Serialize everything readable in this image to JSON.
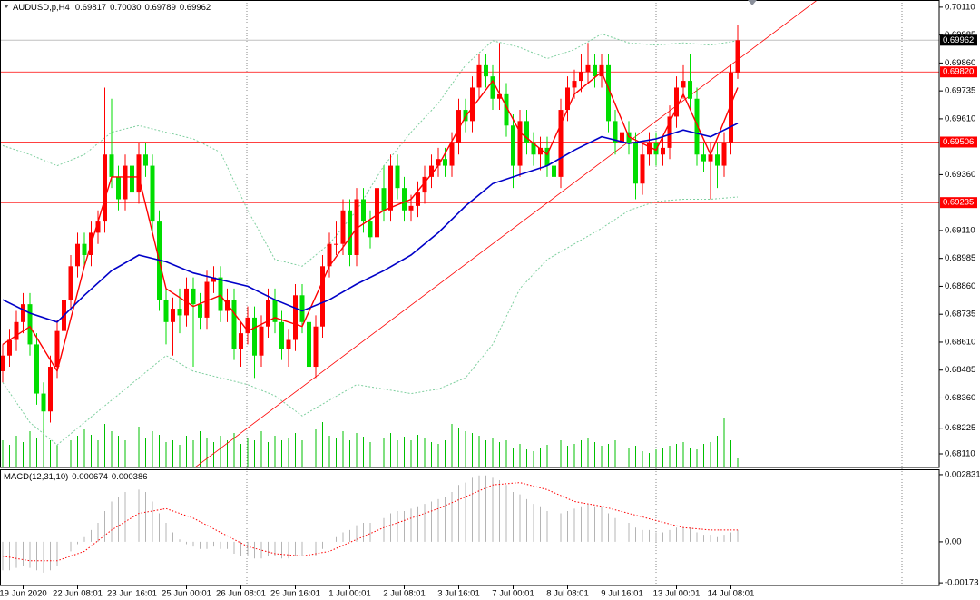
{
  "header": {
    "symbol": "AUDUSD,p,H4",
    "ohlc": [
      "0.69817",
      "0.70030",
      "0.69789",
      "0.69962"
    ]
  },
  "chart_data": {
    "type": "candlestick",
    "xlim": [
      -0.4,
      137.6
    ],
    "xticks": [
      {
        "value": 3,
        "label": "19 Jun 2020"
      },
      {
        "value": 11,
        "label": "22 Jun 08:01"
      },
      {
        "value": 19,
        "label": "23 Jun 16:01"
      },
      {
        "value": 27,
        "label": "25 Jun 00:01"
      },
      {
        "value": 35,
        "label": "26 Jun 08:01"
      },
      {
        "value": 43,
        "label": "29 Jun 16:01"
      },
      {
        "value": 51,
        "label": "1 Jul 00:01"
      },
      {
        "value": 59,
        "label": "2 Jul 08:01"
      },
      {
        "value": 67,
        "label": "3 Jul 16:01"
      },
      {
        "value": 75,
        "label": "7 Jul 00:01"
      },
      {
        "value": 83,
        "label": "8 Jul 08:01"
      },
      {
        "value": 91,
        "label": "9 Jul 16:01"
      },
      {
        "value": 99,
        "label": "13 Jul 00:01"
      },
      {
        "value": 107,
        "label": "14 Jul 08:01"
      }
    ],
    "ylim": [
      0.68049,
      0.70142
    ],
    "yticks": [
      {
        "value": 0.7011,
        "label": "0.70110"
      },
      0.69985,
      {
        "value": 0.6986,
        "label": "0.69860"
      },
      0.69735,
      {
        "value": 0.6961,
        "label": "0.69610"
      },
      {
        "value": 0.6936,
        "label": "0.69360"
      },
      {
        "value": 0.6911,
        "label": "0.69110"
      },
      0.68985,
      {
        "value": 0.6886,
        "label": "0.68860"
      },
      0.68735,
      {
        "value": 0.6861,
        "label": "0.68610"
      },
      0.68485,
      {
        "value": 0.6836,
        "label": "0.68360"
      },
      0.68225,
      {
        "value": 0.6811,
        "label": "0.68110"
      }
    ],
    "up_color": "#ff0000",
    "down_color": "#00dd00",
    "open": [
      0.6848,
      0.6855,
      0.6862,
      0.687,
      0.6878,
      0.686,
      0.6838,
      0.683,
      0.685,
      0.6866,
      0.688,
      0.6895,
      0.6905,
      0.69,
      0.691,
      0.6915,
      0.6945,
      0.6935,
      0.6925,
      0.694,
      0.6928,
      0.6945,
      0.694,
      0.6915,
      0.688,
      0.687,
      0.6876,
      0.6873,
      0.6885,
      0.6878,
      0.6872,
      0.6888,
      0.689,
      0.6875,
      0.688,
      0.6858,
      0.6865,
      0.6872,
      0.6855,
      0.6868,
      0.688,
      0.687,
      0.6858,
      0.6862,
      0.6882,
      0.687,
      0.685,
      0.6868,
      0.6895,
      0.6905,
      0.6905,
      0.692,
      0.69,
      0.6925,
      0.6915,
      0.6908,
      0.693,
      0.692,
      0.694,
      0.693,
      0.692,
      0.6922,
      0.6928,
      0.6935,
      0.694,
      0.6943,
      0.694,
      0.695,
      0.6965,
      0.696,
      0.6975,
      0.6985,
      0.698,
      0.697,
      0.6972,
      0.6958,
      0.694,
      0.696,
      0.695,
      0.6945,
      0.6948,
      0.694,
      0.6935,
      0.6965,
      0.6975,
      0.6978,
      0.6982,
      0.6985,
      0.698,
      0.6985,
      0.696,
      0.695,
      0.6955,
      0.695,
      0.6932,
      0.6945,
      0.695,
      0.6945,
      0.6948,
      0.6962,
      0.6975,
      0.6978,
      0.697,
      0.6945,
      0.6942,
      0.6945,
      0.694,
      0.695,
      0.69817
    ],
    "high": [
      0.686,
      0.6867,
      0.6875,
      0.6883,
      0.6883,
      0.6865,
      0.6843,
      0.6855,
      0.6871,
      0.6885,
      0.69,
      0.691,
      0.691,
      0.6915,
      0.692,
      0.6975,
      0.697,
      0.694,
      0.6945,
      0.6945,
      0.695,
      0.695,
      0.6945,
      0.692,
      0.6885,
      0.6881,
      0.6885,
      0.689,
      0.689,
      0.6883,
      0.6893,
      0.6895,
      0.6895,
      0.6885,
      0.6885,
      0.687,
      0.6877,
      0.6877,
      0.6873,
      0.6885,
      0.6885,
      0.6875,
      0.6867,
      0.6887,
      0.6887,
      0.6875,
      0.6873,
      0.69,
      0.691,
      0.6915,
      0.6925,
      0.6925,
      0.693,
      0.693,
      0.692,
      0.6935,
      0.694,
      0.6945,
      0.6945,
      0.6935,
      0.6927,
      0.6933,
      0.694,
      0.6945,
      0.6948,
      0.6948,
      0.6955,
      0.697,
      0.697,
      0.698,
      0.699,
      0.699,
      0.6985,
      0.6995,
      0.6977,
      0.6963,
      0.6965,
      0.6965,
      0.6955,
      0.6953,
      0.6953,
      0.6945,
      0.697,
      0.698,
      0.6983,
      0.699,
      0.6995,
      0.699,
      0.699,
      0.699,
      0.6965,
      0.696,
      0.696,
      0.6955,
      0.695,
      0.6955,
      0.6955,
      0.6953,
      0.6967,
      0.698,
      0.6985,
      0.699,
      0.6975,
      0.695,
      0.695,
      0.695,
      0.6955,
      0.6985,
      0.7003
    ],
    "low": [
      0.6843,
      0.685,
      0.6857,
      0.6865,
      0.6855,
      0.6833,
      0.6822,
      0.6825,
      0.6845,
      0.6861,
      0.6875,
      0.689,
      0.6895,
      0.6895,
      0.6905,
      0.691,
      0.693,
      0.692,
      0.692,
      0.6923,
      0.6923,
      0.6935,
      0.691,
      0.6875,
      0.686,
      0.6855,
      0.6865,
      0.6868,
      0.685,
      0.6867,
      0.6867,
      0.6883,
      0.687,
      0.687,
      0.6853,
      0.685,
      0.686,
      0.6845,
      0.685,
      0.6863,
      0.6865,
      0.6853,
      0.685,
      0.6857,
      0.6865,
      0.6845,
      0.6845,
      0.6863,
      0.689,
      0.69,
      0.69,
      0.6895,
      0.6895,
      0.691,
      0.6903,
      0.6903,
      0.6915,
      0.6915,
      0.6925,
      0.6915,
      0.6915,
      0.6917,
      0.6923,
      0.693,
      0.6935,
      0.6935,
      0.6935,
      0.6945,
      0.6955,
      0.6955,
      0.697,
      0.6975,
      0.6965,
      0.6965,
      0.6953,
      0.693,
      0.6935,
      0.6945,
      0.694,
      0.6938,
      0.6935,
      0.693,
      0.693,
      0.696,
      0.697,
      0.6973,
      0.6977,
      0.6975,
      0.6975,
      0.6955,
      0.6945,
      0.6945,
      0.6945,
      0.6925,
      0.6927,
      0.694,
      0.694,
      0.694,
      0.6943,
      0.6957,
      0.697,
      0.6965,
      0.694,
      0.6937,
      0.6925,
      0.693,
      0.6935,
      0.6945,
      0.69789
    ],
    "close": [
      0.6855,
      0.6862,
      0.687,
      0.6878,
      0.686,
      0.6838,
      0.683,
      0.685,
      0.6866,
      0.688,
      0.6895,
      0.6905,
      0.69,
      0.691,
      0.6915,
      0.6945,
      0.6935,
      0.6925,
      0.694,
      0.6928,
      0.6945,
      0.694,
      0.6915,
      0.688,
      0.687,
      0.6876,
      0.6873,
      0.6885,
      0.6878,
      0.6872,
      0.6888,
      0.689,
      0.6875,
      0.688,
      0.6858,
      0.6865,
      0.6872,
      0.6855,
      0.6868,
      0.688,
      0.687,
      0.6858,
      0.6862,
      0.6882,
      0.687,
      0.685,
      0.6868,
      0.6895,
      0.6905,
      0.6905,
      0.692,
      0.69,
      0.6925,
      0.6915,
      0.6908,
      0.693,
      0.692,
      0.694,
      0.693,
      0.692,
      0.6922,
      0.6928,
      0.6935,
      0.694,
      0.6943,
      0.694,
      0.695,
      0.6965,
      0.696,
      0.6975,
      0.6985,
      0.698,
      0.697,
      0.6972,
      0.6958,
      0.694,
      0.696,
      0.695,
      0.6945,
      0.6948,
      0.694,
      0.6935,
      0.6965,
      0.6975,
      0.6978,
      0.6982,
      0.6985,
      0.698,
      0.6985,
      0.696,
      0.695,
      0.6955,
      0.695,
      0.6932,
      0.6945,
      0.695,
      0.6945,
      0.6948,
      0.6962,
      0.6975,
      0.6978,
      0.697,
      0.6945,
      0.6942,
      0.6945,
      0.694,
      0.695,
      0.69817,
      0.69962
    ],
    "current_price": 0.69962,
    "levels": [
      {
        "value": 0.6982,
        "label": "0.69820",
        "color": "#ff0000"
      },
      {
        "value": 0.69506,
        "label": "0.69506",
        "color": "#ff0000"
      },
      {
        "value": 0.69235,
        "label": "0.69235",
        "color": "#ff0000"
      }
    ],
    "trendline": {
      "x": [
        28.3,
        119.6
      ],
      "y": [
        0.6805,
        0.7014
      ],
      "color": "#ff0000"
    },
    "indicator_x": [
      0,
      4,
      8,
      12,
      16,
      20,
      24,
      28,
      32,
      36,
      40,
      44,
      48,
      52,
      56,
      60,
      64,
      68,
      72,
      76,
      80,
      84,
      88,
      92,
      96,
      100,
      104,
      108
    ],
    "ma_fast": {
      "color": "#ff0000",
      "values": [
        0.686,
        0.6868,
        0.6848,
        0.6895,
        0.6935,
        0.6935,
        0.6885,
        0.6877,
        0.6882,
        0.6866,
        0.6872,
        0.6868,
        0.6895,
        0.6912,
        0.692,
        0.6925,
        0.694,
        0.6962,
        0.6978,
        0.6955,
        0.6945,
        0.6972,
        0.6982,
        0.6953,
        0.6947,
        0.6972,
        0.6945,
        0.6975
      ]
    },
    "ma_slow": {
      "color": "#0000c8",
      "values": [
        0.688,
        0.6874,
        0.687,
        0.6882,
        0.6893,
        0.69,
        0.6897,
        0.6892,
        0.6889,
        0.6886,
        0.688,
        0.6875,
        0.688,
        0.6887,
        0.6893,
        0.69,
        0.691,
        0.6922,
        0.6932,
        0.6936,
        0.694,
        0.6947,
        0.6953,
        0.695,
        0.6952,
        0.6956,
        0.6953,
        0.6959
      ]
    },
    "band_upper": {
      "color": "#7fcf9f",
      "values": [
        0.6949,
        0.6945,
        0.694,
        0.6945,
        0.6955,
        0.6958,
        0.6955,
        0.6952,
        0.6946,
        0.692,
        0.6898,
        0.6895,
        0.6905,
        0.692,
        0.694,
        0.6955,
        0.6968,
        0.6985,
        0.6996,
        0.6993,
        0.6988,
        0.6992,
        0.6999,
        0.6995,
        0.6994,
        0.6995,
        0.6994,
        0.6996
      ]
    },
    "band_lower": {
      "color": "#7fcf9f",
      "values": [
        0.6843,
        0.6825,
        0.6815,
        0.6825,
        0.6835,
        0.6845,
        0.6855,
        0.6848,
        0.6845,
        0.6842,
        0.6837,
        0.6828,
        0.6835,
        0.6842,
        0.684,
        0.6838,
        0.684,
        0.6845,
        0.686,
        0.6885,
        0.6898,
        0.6905,
        0.6912,
        0.692,
        0.6924,
        0.6925,
        0.6925,
        0.6926
      ]
    },
    "volume": {
      "color": "#00c000",
      "values": [
        30,
        25,
        35,
        28,
        40,
        33,
        45,
        30,
        25,
        38,
        30,
        35,
        42,
        36,
        30,
        48,
        40,
        35,
        30,
        38,
        45,
        32,
        40,
        36,
        28,
        30,
        25,
        35,
        30,
        40,
        32,
        28,
        35,
        30,
        38,
        26,
        32,
        30,
        40,
        28,
        35,
        30,
        33,
        38,
        30,
        36,
        42,
        50,
        35,
        32,
        40,
        30,
        38,
        34,
        28,
        36,
        32,
        38,
        30,
        34,
        30,
        36,
        32,
        28,
        26,
        30,
        48,
        44,
        40,
        38,
        35,
        30,
        32,
        28,
        30,
        22,
        26,
        20,
        18,
        22,
        25,
        28,
        30,
        24,
        26,
        30,
        32,
        28,
        24,
        26,
        30,
        20,
        22,
        24,
        18,
        16,
        20,
        22,
        24,
        26,
        28,
        22,
        20,
        26,
        28,
        35,
        55,
        30,
        10
      ]
    },
    "macd": {
      "label": "MACD(12,31,10)",
      "values_text": [
        "0.000674",
        "0.000386"
      ],
      "ylim": [
        -0.00184,
        0.00302
      ],
      "yticks": [
        0.002831,
        {
          "value": 0,
          "label": "0.00"
        },
        -0.00173
      ],
      "hist_color": "#b4b4b4",
      "histogram": [
        -0.0012,
        -0.0012,
        -0.0011,
        -0.001,
        -0.0011,
        -0.0012,
        -0.0013,
        -0.0012,
        -0.001,
        -0.0007,
        -0.0004,
        -0.0001,
        0.0002,
        0.0005,
        0.0008,
        0.0013,
        0.0017,
        0.0019,
        0.0021,
        0.002,
        0.0022,
        0.0021,
        0.0017,
        0.0012,
        0.0008,
        0.0004,
        0.0001,
        -0.0001,
        -0.0002,
        -0.0003,
        -0.0003,
        -0.0002,
        -0.0003,
        -0.0003,
        -0.0005,
        -0.0006,
        -0.0006,
        -0.0007,
        -0.0007,
        -0.0006,
        -0.0006,
        -0.0007,
        -0.0007,
        -0.0006,
        -0.0006,
        -0.0007,
        -0.0006,
        -0.0003,
        0,
        0.0002,
        0.0004,
        0.0005,
        0.0007,
        0.0008,
        0.0008,
        0.001,
        0.001,
        0.0012,
        0.0013,
        0.0013,
        0.0014,
        0.0015,
        0.0016,
        0.0017,
        0.0018,
        0.0019,
        0.0021,
        0.0024,
        0.0025,
        0.0027,
        0.0028,
        0.0028,
        0.0027,
        0.0026,
        0.0024,
        0.0021,
        0.002,
        0.0018,
        0.0016,
        0.0015,
        0.0013,
        0.0011,
        0.0012,
        0.0013,
        0.0014,
        0.0015,
        0.0016,
        0.0015,
        0.0015,
        0.0012,
        0.001,
        0.0009,
        0.0008,
        0.0006,
        0.0005,
        0.0005,
        0.0004,
        0.0004,
        0.0005,
        0.0006,
        0.0006,
        0.0006,
        0.0004,
        0.0003,
        0.0003,
        0.0002,
        0.0003,
        0.0004,
        0.0005
      ],
      "signal": {
        "color": "#ff0000",
        "values": [
          -0.0006,
          -0.0008,
          -0.0008,
          -0.0004,
          0.0005,
          0.0012,
          0.0014,
          0.001,
          0.0004,
          -0.0002,
          -0.0005,
          -0.0006,
          -0.0004,
          0.0001,
          0.0006,
          0.001,
          0.0014,
          0.0019,
          0.0024,
          0.0025,
          0.0022,
          0.0017,
          0.0015,
          0.0012,
          0.0009,
          0.0006,
          0.0005,
          0.0005
        ]
      }
    }
  }
}
